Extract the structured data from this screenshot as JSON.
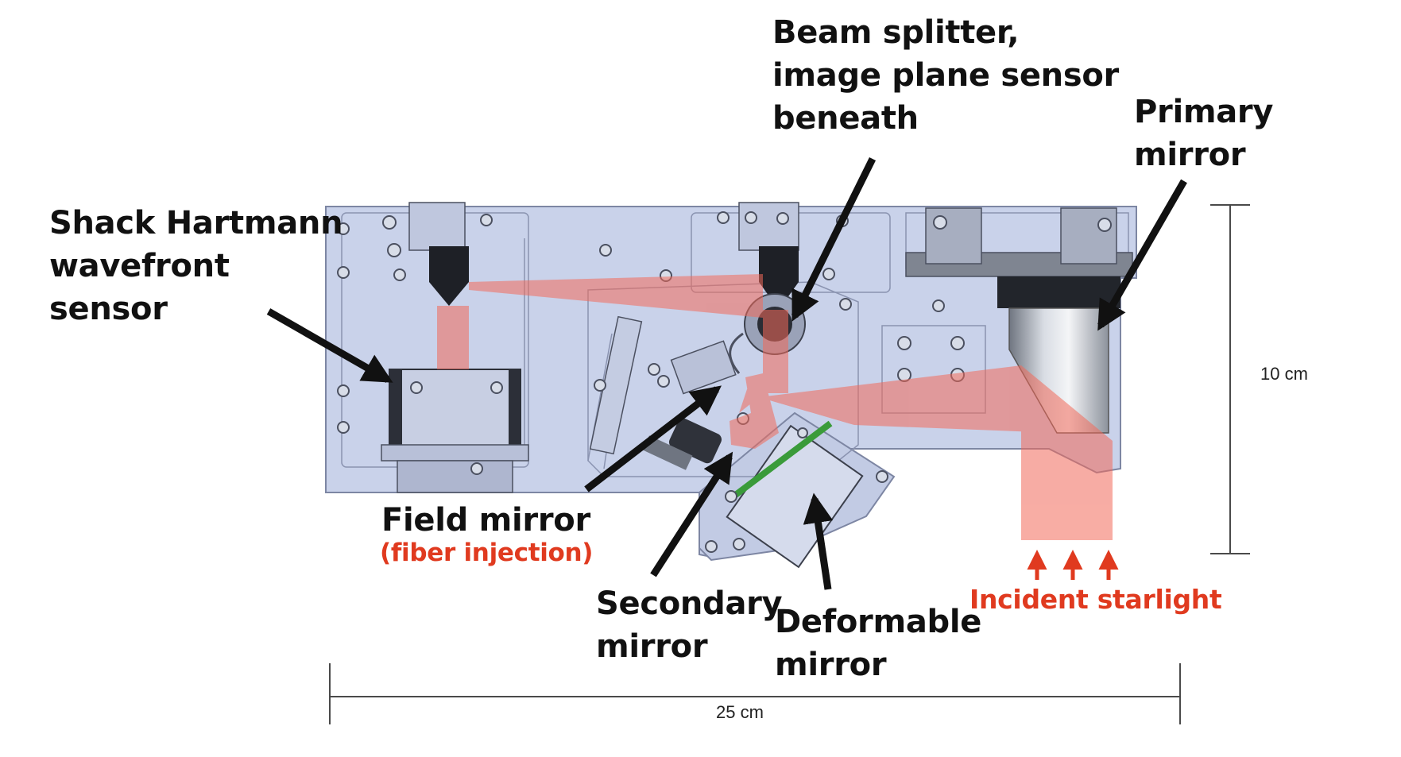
{
  "labels": {
    "beam_splitter": [
      "Beam splitter,",
      "image plane sensor",
      "beneath"
    ],
    "primary_mirror": [
      "Primary",
      "mirror"
    ],
    "shack_hartmann": [
      "Shack Hartmann",
      "wavefront",
      "sensor"
    ],
    "field_mirror": "Field mirror",
    "field_mirror_note": "(fiber injection)",
    "secondary_mirror": [
      "Secondary",
      "mirror"
    ],
    "deformable_mirror": [
      "Deformable",
      "mirror"
    ],
    "incident_starlight": "Incident starlight"
  },
  "dimensions": {
    "height": "10 cm",
    "width": "25 cm"
  },
  "colors": {
    "plate": "#c9d2ea",
    "plate_edge": "#7d86a3",
    "beam": "#f26a5a",
    "label_red": "#e03a1f",
    "arrow": "#111111"
  }
}
